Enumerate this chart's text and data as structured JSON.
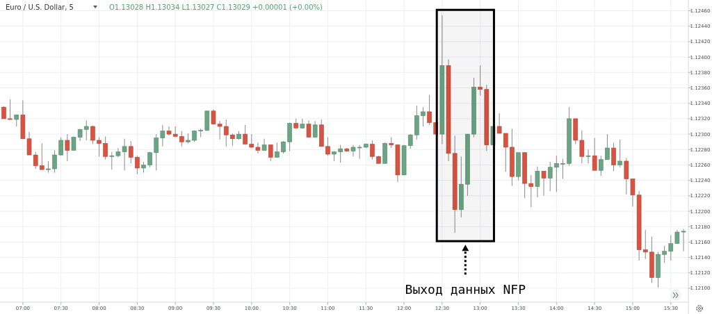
{
  "chart_data": {
    "type": "candlestick",
    "title": "Euro / U.S. Dollar, 5",
    "subtitle": "O1.13028 H1.13034 L1.13027 C1.13029 +0.00001 (+0.00%)",
    "colors": [
      "#d75442",
      "#d75442",
      "#6ba583",
      "#d75442",
      "#d75442",
      "#d75442",
      "#d75442",
      "#6ba583",
      "#6ba583",
      "#6ba583",
      "#d75442",
      "#6ba583",
      "#6ba583",
      "#6ba583",
      "#d75442",
      "#d75442",
      "#d75442",
      "#6ba583",
      "#6ba583",
      "#6ba583",
      "#d75442",
      "#d75442",
      "#6ba583",
      "#6ba583",
      "#6ba583",
      "#6ba583",
      "#d75442",
      "#d75442",
      "#d75442",
      "#6ba583",
      "#6ba583",
      "#6ba583",
      "#6ba583",
      "#d75442",
      "#d75442",
      "#d75442",
      "#d75442",
      "#6ba583",
      "#d75442",
      "#d75442",
      "#d75442",
      "#6ba583",
      "#d75442",
      "#6ba583",
      "#6ba583",
      "#6ba583",
      "#d75442",
      "#6ba583",
      "#d75442",
      "#6ba583",
      "#d75442",
      "#d75442",
      "#6ba583",
      "#6ba583",
      "#d75442",
      "#6ba583",
      "#6ba583",
      "#6ba583",
      "#d75442",
      "#d75442",
      "#6ba583",
      "#d75442",
      "#d75442",
      "#6ba583",
      "#6ba583",
      "#6ba583",
      "#6ba583",
      "#d75442",
      "#d75442",
      "#6ba583",
      "#d75442",
      "#d75442",
      "#6ba583",
      "#6ba583",
      "#6ba583",
      "#d75442",
      "#d75442",
      "#6ba583",
      "#d75442",
      "#d75442",
      "#d75442",
      "#6ba583",
      "#d75442",
      "#d75442",
      "#6ba583",
      "#d75442",
      "#6ba583",
      "#6ba583",
      "#6ba583",
      "#6ba583",
      "#d75442",
      "#d75442",
      "#6ba583",
      "#d75442",
      "#6ba583",
      "#6ba583",
      "#d75442",
      "#6ba583",
      "#d75442",
      "#d75442",
      "#d75442",
      "#d75442",
      "#d75442",
      "#6ba583",
      "#6ba583",
      "#6ba583",
      "#6ba583",
      "#6ba583"
    ],
    "grid": true,
    "xlim": [
      6.7,
      15.73
    ],
    "xticks": [
      {
        "value": 7,
        "label": "07:00"
      },
      {
        "value": 7.5,
        "label": "07:30"
      },
      {
        "value": 8,
        "label": "08:00"
      },
      {
        "value": 8.5,
        "label": "08:30"
      },
      {
        "value": 9,
        "label": "09:00"
      },
      {
        "value": 9.5,
        "label": "09:30"
      },
      {
        "value": 10,
        "label": "10:00"
      },
      {
        "value": 10.5,
        "label": "10:30"
      },
      {
        "value": 11,
        "label": "11:00"
      },
      {
        "value": 11.5,
        "label": "11:30"
      },
      {
        "value": 12,
        "label": "12:00"
      },
      {
        "value": 12.5,
        "label": "12:30"
      },
      {
        "value": 13,
        "label": "13:00"
      },
      {
        "value": 13.5,
        "label": "13:30"
      },
      {
        "value": 14,
        "label": "14:00"
      },
      {
        "value": 14.5,
        "label": "14:30"
      },
      {
        "value": 15,
        "label": "15:00"
      },
      {
        "value": 15.5,
        "label": "15:30"
      }
    ],
    "ylim": [
      1.12082,
      1.12474
    ],
    "yticks": [
      {
        "value": 1.121,
        "label": "1.12100"
      },
      {
        "value": 1.1212,
        "label": "1.12120"
      },
      {
        "value": 1.1214,
        "label": "1.12140"
      },
      {
        "value": 1.1216,
        "label": "1.12160"
      },
      {
        "value": 1.1218,
        "label": "1.12180"
      },
      {
        "value": 1.122,
        "label": "1.12200"
      },
      {
        "value": 1.1222,
        "label": "1.12220"
      },
      {
        "value": 1.1224,
        "label": "1.12240"
      },
      {
        "value": 1.1226,
        "label": "1.12260"
      },
      {
        "value": 1.1228,
        "label": "1.12280"
      },
      {
        "value": 1.123,
        "label": "1.12300"
      },
      {
        "value": 1.1232,
        "label": "1.12320"
      },
      {
        "value": 1.1234,
        "label": "1.12340"
      },
      {
        "value": 1.1236,
        "label": "1.12360"
      },
      {
        "value": 1.1238,
        "label": "1.12380"
      },
      {
        "value": 1.124,
        "label": "1.12400"
      },
      {
        "value": 1.1242,
        "label": "1.12420"
      },
      {
        "value": 1.1244,
        "label": "1.12440"
      },
      {
        "value": 1.1246,
        "label": "1.12460"
      }
    ],
    "bands": [
      {
        "axis": "x",
        "from": 12.43,
        "to": 13.18,
        "label": "Выход данных NFP",
        "color": "#000000"
      }
    ],
    "x": [
      6.75,
      6.8333,
      6.9167,
      7,
      7.0833,
      7.1667,
      7.25,
      7.3333,
      7.4167,
      7.5,
      7.5833,
      7.6667,
      7.75,
      7.8333,
      7.9167,
      8,
      8.0833,
      8.1667,
      8.25,
      8.3333,
      8.4167,
      8.5,
      8.5833,
      8.6667,
      8.75,
      8.8333,
      8.9167,
      9,
      9.0833,
      9.1667,
      9.25,
      9.3333,
      9.4167,
      9.5,
      9.5833,
      9.6667,
      9.75,
      9.8333,
      9.9167,
      10,
      10.0833,
      10.1667,
      10.25,
      10.3333,
      10.4167,
      10.5,
      10.5833,
      10.6667,
      10.75,
      10.8333,
      10.9167,
      11,
      11.0833,
      11.1667,
      11.25,
      11.3333,
      11.4167,
      11.5,
      11.5833,
      11.6667,
      11.75,
      11.8333,
      11.9167,
      12,
      12.0833,
      12.1667,
      12.25,
      12.3333,
      12.4167,
      12.5,
      12.5833,
      12.6667,
      12.75,
      12.8333,
      12.9167,
      13,
      13.0833,
      13.1667,
      13.25,
      13.3333,
      13.4167,
      13.5,
      13.5833,
      13.6667,
      13.75,
      13.8333,
      13.9167,
      14,
      14.0833,
      14.1667,
      14.25,
      14.3333,
      14.4167,
      14.5,
      14.5833,
      14.6667,
      14.75,
      14.8333,
      14.9167,
      15,
      15.0833,
      15.1667,
      15.25,
      15.3333,
      15.4167,
      15.5,
      15.5833,
      15.6667
    ],
    "ohlc": [
      [
        1.12335,
        1.12336,
        1.1232,
        1.1232
      ],
      [
        1.1232,
        1.12345,
        1.12319,
        1.12319
      ],
      [
        1.12319,
        1.12325,
        1.1231,
        1.12325
      ],
      [
        1.12325,
        1.12344,
        1.12294,
        1.12294
      ],
      [
        1.12294,
        1.12303,
        1.12273,
        1.12273
      ],
      [
        1.12273,
        1.12277,
        1.12255,
        1.12259
      ],
      [
        1.12259,
        1.12288,
        1.12254,
        1.12254
      ],
      [
        1.12254,
        1.12265,
        1.1225,
        1.12255
      ],
      [
        1.12255,
        1.12279,
        1.1225,
        1.12273
      ],
      [
        1.12273,
        1.12296,
        1.12272,
        1.12292
      ],
      [
        1.12292,
        1.123,
        1.12265,
        1.12279
      ],
      [
        1.12279,
        1.12297,
        1.12279,
        1.12296
      ],
      [
        1.12296,
        1.12307,
        1.12291,
        1.12306
      ],
      [
        1.12306,
        1.12318,
        1.12292,
        1.1231
      ],
      [
        1.1231,
        1.12311,
        1.12287,
        1.12292
      ],
      [
        1.12292,
        1.12296,
        1.12271,
        1.12288
      ],
      [
        1.12288,
        1.12297,
        1.12267,
        1.12271
      ],
      [
        1.12271,
        1.12277,
        1.12254,
        1.12272
      ],
      [
        1.12272,
        1.12282,
        1.1227,
        1.12277
      ],
      [
        1.12277,
        1.12294,
        1.12253,
        1.12284
      ],
      [
        1.12284,
        1.12291,
        1.12262,
        1.1227
      ],
      [
        1.1227,
        1.12272,
        1.12248,
        1.12256
      ],
      [
        1.12256,
        1.12264,
        1.1225,
        1.1226
      ],
      [
        1.1226,
        1.12277,
        1.12257,
        1.12276
      ],
      [
        1.12276,
        1.123,
        1.12253,
        1.12295
      ],
      [
        1.12295,
        1.12312,
        1.12284,
        1.12304
      ],
      [
        1.12304,
        1.1231,
        1.12298,
        1.123
      ],
      [
        1.123,
        1.1231,
        1.12296,
        1.12297
      ],
      [
        1.12297,
        1.12304,
        1.12284,
        1.1229
      ],
      [
        1.1229,
        1.12301,
        1.12288,
        1.12292
      ],
      [
        1.12292,
        1.12305,
        1.1229,
        1.12304
      ],
      [
        1.12304,
        1.12307,
        1.12296,
        1.12305
      ],
      [
        1.12305,
        1.1233,
        1.12304,
        1.1233
      ],
      [
        1.1233,
        1.12332,
        1.12313,
        1.12313
      ],
      [
        1.12313,
        1.12317,
        1.12293,
        1.1231
      ],
      [
        1.1231,
        1.12319,
        1.12284,
        1.12299
      ],
      [
        1.12299,
        1.12301,
        1.12285,
        1.12294
      ],
      [
        1.12294,
        1.12304,
        1.12293,
        1.123
      ],
      [
        1.123,
        1.12312,
        1.12287,
        1.12287
      ],
      [
        1.12287,
        1.123,
        1.12282,
        1.12283
      ],
      [
        1.12283,
        1.12289,
        1.12275,
        1.12279
      ],
      [
        1.12279,
        1.12294,
        1.12279,
        1.12286
      ],
      [
        1.12286,
        1.12287,
        1.12265,
        1.1227
      ],
      [
        1.1227,
        1.12289,
        1.1227,
        1.12277
      ],
      [
        1.12277,
        1.12291,
        1.12275,
        1.1229
      ],
      [
        1.1229,
        1.12315,
        1.12278,
        1.12314
      ],
      [
        1.12314,
        1.1232,
        1.12307,
        1.12308
      ],
      [
        1.12308,
        1.1232,
        1.12307,
        1.12313
      ],
      [
        1.12313,
        1.12318,
        1.12296,
        1.12296
      ],
      [
        1.12296,
        1.12317,
        1.12296,
        1.12312
      ],
      [
        1.12312,
        1.12319,
        1.12284,
        1.12284
      ],
      [
        1.12284,
        1.12296,
        1.12272,
        1.12274
      ],
      [
        1.12274,
        1.12278,
        1.12265,
        1.12277
      ],
      [
        1.12277,
        1.12286,
        1.12263,
        1.12281
      ],
      [
        1.12281,
        1.12282,
        1.12277,
        1.12278
      ],
      [
        1.12278,
        1.12286,
        1.12271,
        1.12283
      ],
      [
        1.12283,
        1.12286,
        1.12268,
        1.12283
      ],
      [
        1.12283,
        1.12288,
        1.12282,
        1.12287
      ],
      [
        1.12287,
        1.12292,
        1.12267,
        1.12271
      ],
      [
        1.12271,
        1.12272,
        1.12262,
        1.12262
      ],
      [
        1.12262,
        1.12289,
        1.12262,
        1.12288
      ],
      [
        1.12288,
        1.12296,
        1.12282,
        1.12286
      ],
      [
        1.12286,
        1.12287,
        1.12238,
        1.12247
      ],
      [
        1.12247,
        1.12286,
        1.12247,
        1.12285
      ],
      [
        1.12285,
        1.123,
        1.12281,
        1.12299
      ],
      [
        1.12299,
        1.12337,
        1.12293,
        1.12324
      ],
      [
        1.12324,
        1.12335,
        1.1231,
        1.12329
      ],
      [
        1.12329,
        1.12351,
        1.12312,
        1.12315
      ],
      [
        1.12315,
        1.12315,
        1.123,
        1.123
      ],
      [
        1.123,
        1.12454,
        1.12287,
        1.12389
      ],
      [
        1.12389,
        1.12397,
        1.12265,
        1.12275
      ],
      [
        1.12275,
        1.12298,
        1.12172,
        1.12202
      ],
      [
        1.12202,
        1.12271,
        1.12192,
        1.12235
      ],
      [
        1.12235,
        1.123,
        1.1222,
        1.123
      ],
      [
        1.123,
        1.12373,
        1.12296,
        1.12361
      ],
      [
        1.12361,
        1.12389,
        1.1235,
        1.12358
      ],
      [
        1.12358,
        1.12364,
        1.12278,
        1.12286
      ],
      [
        1.12286,
        1.1231,
        1.12286,
        1.1231
      ],
      [
        1.1231,
        1.12327,
        1.12301,
        1.12301
      ],
      [
        1.12301,
        1.12301,
        1.12251,
        1.12283
      ],
      [
        1.12283,
        1.12307,
        1.12233,
        1.12245
      ],
      [
        1.12245,
        1.12276,
        1.1224,
        1.12276
      ],
      [
        1.12276,
        1.12276,
        1.12217,
        1.12236
      ],
      [
        1.12236,
        1.12247,
        1.12205,
        1.12232
      ],
      [
        1.12232,
        1.12258,
        1.12218,
        1.12252
      ],
      [
        1.12252,
        1.12252,
        1.1222,
        1.12243
      ],
      [
        1.12243,
        1.12264,
        1.12226,
        1.12257
      ],
      [
        1.12257,
        1.12272,
        1.12225,
        1.12262
      ],
      [
        1.12262,
        1.12268,
        1.12242,
        1.12262
      ],
      [
        1.12262,
        1.12335,
        1.12259,
        1.1232
      ],
      [
        1.1232,
        1.1232,
        1.12287,
        1.12292
      ],
      [
        1.12292,
        1.12305,
        1.12262,
        1.12271
      ],
      [
        1.12271,
        1.1228,
        1.12262,
        1.12272
      ],
      [
        1.12272,
        1.12295,
        1.12253,
        1.12253
      ],
      [
        1.12253,
        1.12272,
        1.12246,
        1.12267
      ],
      [
        1.12267,
        1.123,
        1.12267,
        1.12282
      ],
      [
        1.12282,
        1.12289,
        1.12252,
        1.1226
      ],
      [
        1.1226,
        1.12293,
        1.12257,
        1.12265
      ],
      [
        1.12265,
        1.12269,
        1.12222,
        1.12242
      ],
      [
        1.12242,
        1.12242,
        1.12206,
        1.12221
      ],
      [
        1.12221,
        1.12226,
        1.12136,
        1.1215
      ],
      [
        1.1215,
        1.12176,
        1.12138,
        1.12147
      ],
      [
        1.12147,
        1.12167,
        1.12107,
        1.12114
      ],
      [
        1.12114,
        1.12147,
        1.12101,
        1.12144
      ],
      [
        1.12144,
        1.12155,
        1.12133,
        1.12148
      ],
      [
        1.12148,
        1.12169,
        1.12136,
        1.12158
      ],
      [
        1.12158,
        1.12176,
        1.12158,
        1.12173
      ],
      [
        1.12173,
        1.12177,
        1.12148,
        1.12174
      ]
    ]
  }
}
